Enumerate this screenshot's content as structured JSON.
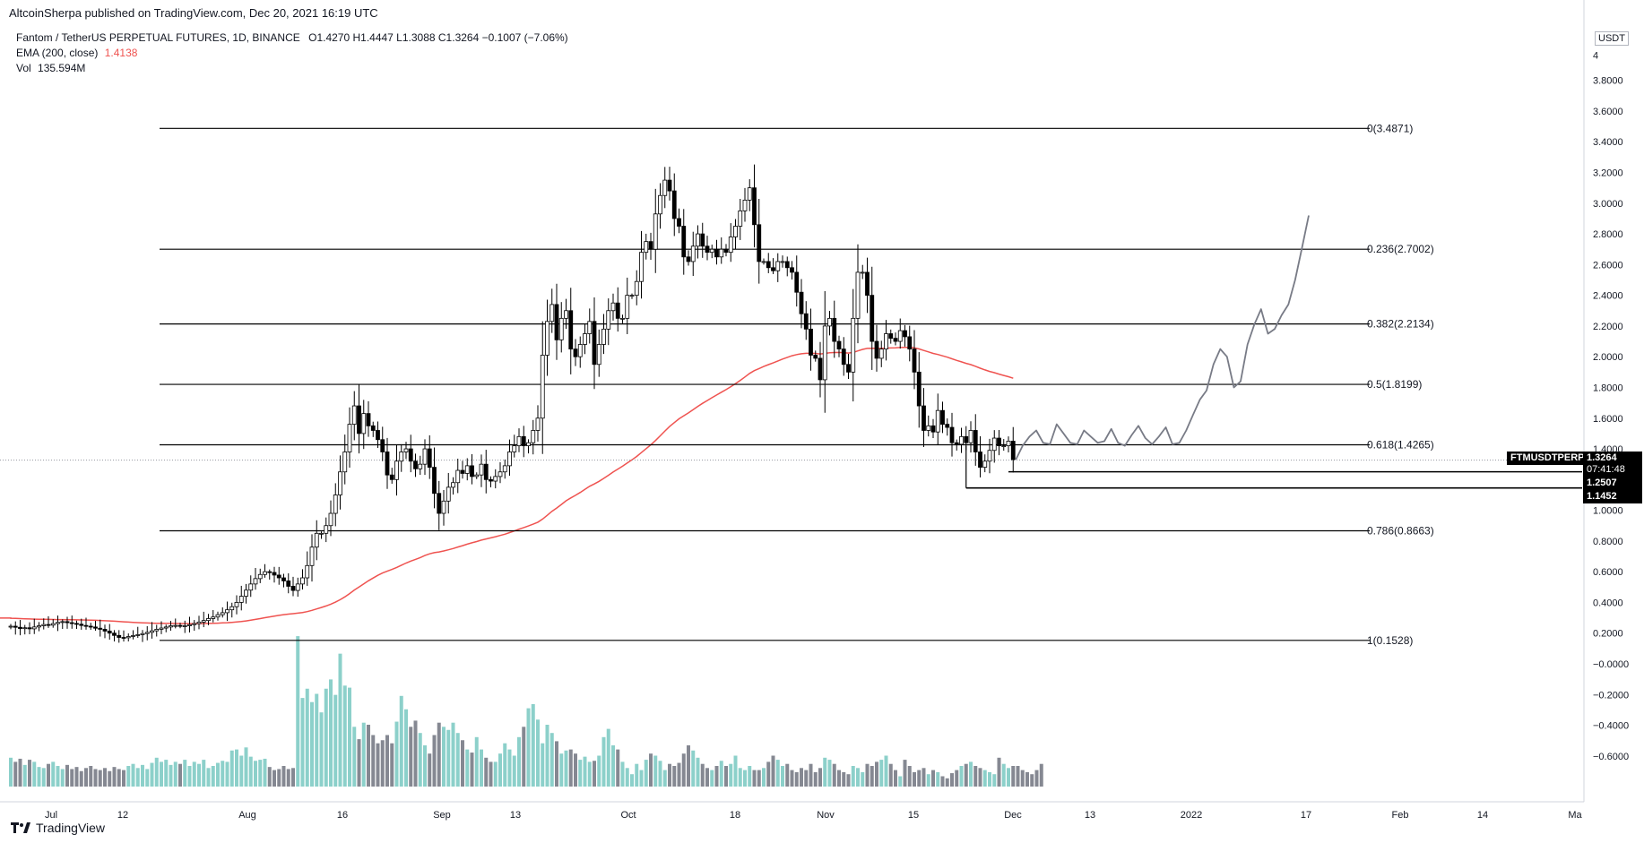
{
  "publisher_line": "AltcoinSherpa published on TradingView.com, Dec 20, 2021 16:19 UTC",
  "legend": {
    "symbol": "Fantom / TetherUS PERPETUAL FUTURES, 1D, BINANCE",
    "ohlc": "O1.4270  H1.4447  L1.3088  C1.3264  −0.1007 (−7.06%)",
    "ema_label": "EMA (200, close)",
    "ema_value": "1.4138",
    "vol_label": "Vol",
    "vol_value": "135.594M"
  },
  "currency": "USDT",
  "footer_brand": "TradingView",
  "colors": {
    "background": "#ffffff",
    "candle_up_body": "#ffffff",
    "candle_down_body": "#000000",
    "candle_outline": "#000000",
    "ema": "#ef5350",
    "volume_up": "#80cbc4",
    "volume_down": "#787b86",
    "fib_line": "#000000",
    "projection": "#787b86",
    "grid_dotted": "#9598a1"
  },
  "price_tags": [
    {
      "label": "FTMUSDTPERP",
      "value": "1.3264",
      "sub": "07:41:48"
    },
    {
      "value": "1.2507"
    },
    {
      "value": "1.1452"
    }
  ],
  "chart_data": {
    "type": "candlestick",
    "title": "Fantom / TetherUS PERPETUAL FUTURES, 1D, BINANCE",
    "y_axis": {
      "ticks": [
        "3.8000",
        "3.6000",
        "3.4000",
        "3.2000",
        "3.0000",
        "2.8000",
        "2.6000",
        "2.4000",
        "2.2000",
        "2.0000",
        "1.8000",
        "1.6000",
        "1.4000",
        "1.2000",
        "1.0000",
        "0.8000",
        "0.6000",
        "0.4000",
        "0.2000",
        "−0.0000",
        "−0.2000",
        "−0.4000",
        "−0.6000"
      ],
      "top_tick_partial": "4",
      "ylim": [
        -0.75,
        4.0
      ]
    },
    "x_axis": {
      "ticks": [
        "Jul",
        "12",
        "Aug",
        "16",
        "Sep",
        "13",
        "Oct",
        "18",
        "Nov",
        "15",
        "Dec",
        "13",
        "2022",
        "17",
        "Feb",
        "14",
        "Ma"
      ],
      "start": "2021-06-26",
      "end": "2022-03-01"
    },
    "fib_levels": [
      {
        "label": "0(3.4871)",
        "value": 3.4871
      },
      {
        "label": "0.236(2.7002)",
        "value": 2.7002
      },
      {
        "label": "0.382(2.2134)",
        "value": 2.2134
      },
      {
        "label": "0.5(1.8199)",
        "value": 1.8199
      },
      {
        "label": "0.618(1.4265)",
        "value": 1.4265
      },
      {
        "label": "0.786(0.8663)",
        "value": 0.8663
      },
      {
        "label": "1(0.1528)",
        "value": 0.1528
      }
    ],
    "horizontal_levels": [
      1.2507,
      1.1452
    ],
    "last_price": 1.3264,
    "close_series": [
      0.245,
      0.238,
      0.23,
      0.235,
      0.228,
      0.24,
      0.248,
      0.256,
      0.252,
      0.262,
      0.27,
      0.275,
      0.268,
      0.263,
      0.258,
      0.25,
      0.245,
      0.24,
      0.232,
      0.225,
      0.213,
      0.2,
      0.185,
      0.172,
      0.17,
      0.178,
      0.184,
      0.19,
      0.197,
      0.205,
      0.215,
      0.225,
      0.233,
      0.24,
      0.248,
      0.25,
      0.246,
      0.248,
      0.255,
      0.262,
      0.272,
      0.282,
      0.295,
      0.305,
      0.32,
      0.333,
      0.352,
      0.372,
      0.4,
      0.44,
      0.48,
      0.52,
      0.555,
      0.582,
      0.6,
      0.595,
      0.578,
      0.56,
      0.54,
      0.505,
      0.478,
      0.52,
      0.56,
      0.64,
      0.76,
      0.85,
      0.85,
      0.9,
      0.98,
      1.1,
      1.25,
      1.38,
      1.56,
      1.68,
      1.5,
      1.63,
      1.55,
      1.52,
      1.46,
      1.38,
      1.23,
      1.2,
      1.32,
      1.38,
      1.4,
      1.32,
      1.27,
      1.3,
      1.4,
      1.28,
      1.11,
      0.98,
      1.06,
      1.15,
      1.18,
      1.26,
      1.24,
      1.29,
      1.22,
      1.23,
      1.3,
      1.2,
      1.19,
      1.22,
      1.25,
      1.29,
      1.38,
      1.42,
      1.48,
      1.42,
      1.44,
      1.52,
      1.6,
      2.01,
      2.23,
      2.34,
      2.11,
      2.25,
      2.3,
      2.05,
      2.0,
      2.08,
      2.15,
      2.23,
      1.95,
      2.08,
      2.18,
      2.3,
      2.35,
      2.25,
      2.25,
      2.4,
      2.4,
      2.49,
      2.68,
      2.75,
      2.7,
      2.93,
      3.05,
      3.15,
      3.08,
      2.9,
      2.85,
      2.65,
      2.62,
      2.72,
      2.8,
      2.72,
      2.68,
      2.7,
      2.65,
      2.7,
      2.68,
      2.78,
      2.85,
      2.95,
      3.02,
      3.1,
      2.86,
      2.62,
      2.62,
      2.58,
      2.56,
      2.62,
      2.62,
      2.58,
      2.55,
      2.42,
      2.28,
      2.18,
      2.01,
      1.99,
      1.85,
      2.2,
      2.25,
      2.1,
      2.05,
      1.95,
      1.9,
      2.25,
      2.55,
      2.55,
      2.4,
      2.1,
      1.99,
      2.05,
      2.15,
      2.12,
      2.1,
      2.17,
      2.13,
      2.05,
      1.9,
      1.68,
      1.52,
      1.55,
      1.51,
      1.65,
      1.56,
      1.54,
      1.44,
      1.43,
      1.48,
      1.44,
      1.52,
      1.38,
      1.28,
      1.32,
      1.39,
      1.47,
      1.42,
      1.42,
      1.45,
      1.33
    ],
    "ema_start": 0.298,
    "ema_end": 1.4138,
    "volume_series": [
      28,
      24,
      27,
      21,
      26,
      24,
      19,
      18,
      22,
      24,
      20,
      17,
      21,
      17,
      19,
      15,
      18,
      20,
      17,
      16,
      18,
      15,
      19,
      17,
      16,
      20,
      22,
      18,
      21,
      17,
      23,
      28,
      24,
      26,
      21,
      24,
      22,
      26,
      20,
      24,
      22,
      26,
      18,
      20,
      23,
      25,
      24,
      35,
      36,
      30,
      38,
      29,
      25,
      26,
      27,
      19,
      16,
      17,
      20,
      17,
      18,
      146,
      86,
      95,
      82,
      90,
      72,
      95,
      104,
      89,
      129,
      98,
      96,
      58,
      46,
      62,
      60,
      50,
      42,
      45,
      50,
      42,
      63,
      88,
      75,
      58,
      64,
      52,
      40,
      32,
      50,
      62,
      58,
      55,
      62,
      52,
      45,
      36,
      33,
      48,
      36,
      28,
      24,
      24,
      32,
      42,
      36,
      30,
      48,
      58,
      76,
      80,
      65,
      42,
      60,
      52,
      44,
      32,
      35,
      36,
      32,
      26,
      29,
      24,
      25,
      30,
      48,
      56,
      40,
      36,
      24,
      18,
      12,
      22,
      16,
      26,
      32,
      30,
      25,
      16,
      22,
      20,
      23,
      32,
      40,
      35,
      28,
      22,
      18,
      16,
      20,
      25,
      20,
      22,
      30,
      18,
      16,
      20,
      16,
      16,
      18,
      24,
      30,
      26,
      20,
      22,
      16,
      14,
      18,
      16,
      22,
      14,
      18,
      28,
      26,
      22,
      16,
      14,
      12,
      20,
      18,
      14,
      22,
      20,
      24,
      26,
      30,
      22,
      16,
      10,
      26,
      20,
      14,
      16,
      18,
      12,
      16,
      14,
      10,
      8,
      13,
      16,
      20,
      22,
      24,
      20,
      18,
      16,
      14,
      12,
      28,
      22,
      18,
      20,
      20,
      16,
      14,
      12,
      16,
      22
    ],
    "projection_points": [
      [
        1.33
      ],
      [
        1.42
      ],
      [
        1.48
      ],
      [
        1.52
      ],
      [
        1.44
      ],
      [
        1.43
      ],
      [
        1.56
      ],
      [
        1.5
      ],
      [
        1.44
      ],
      [
        1.43
      ],
      [
        1.52
      ],
      [
        1.48
      ],
      [
        1.44
      ],
      [
        1.45
      ],
      [
        1.53
      ],
      [
        1.44
      ],
      [
        1.42
      ],
      [
        1.49
      ],
      [
        1.55
      ],
      [
        1.47
      ],
      [
        1.43
      ],
      [
        1.48
      ],
      [
        1.54
      ],
      [
        1.43
      ],
      [
        1.44
      ],
      [
        1.52
      ],
      [
        1.62
      ],
      [
        1.72
      ],
      [
        1.78
      ],
      [
        1.95
      ],
      [
        2.05
      ],
      [
        2.0
      ],
      [
        1.8
      ],
      [
        1.84
      ],
      [
        2.08
      ],
      [
        2.21
      ],
      [
        2.31
      ],
      [
        2.15
      ],
      [
        2.18
      ],
      [
        2.27
      ],
      [
        2.34
      ],
      [
        2.5
      ],
      [
        2.71
      ],
      [
        2.92
      ]
    ]
  }
}
